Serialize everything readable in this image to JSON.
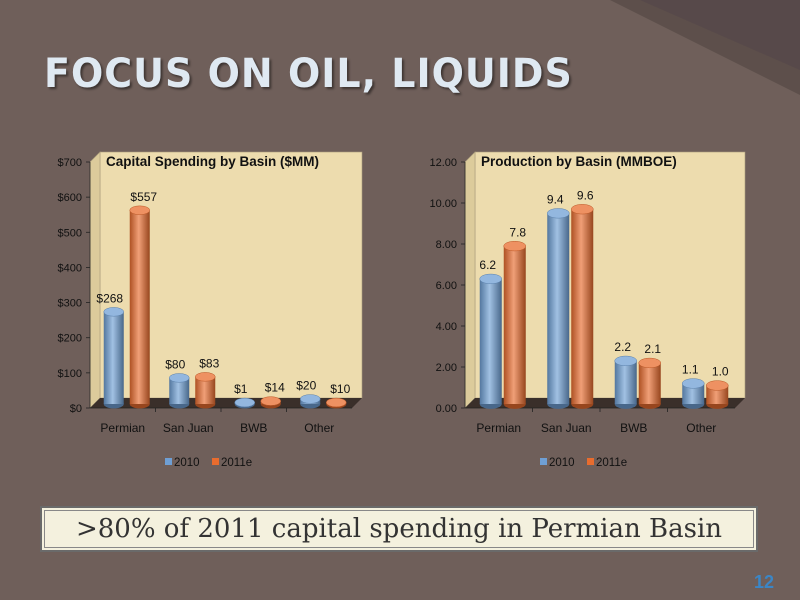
{
  "slide": {
    "title": "FOCUS ON OIL, LIQUIDS",
    "callout": ">80% of 2011 capital spending in Permian Basin",
    "page_number": "12",
    "colors": {
      "background": "#6f5f5a",
      "dark_wedge": "#5d4f4b",
      "title": "#dfe9f2",
      "plot_area": "#eddcae",
      "page_number": "#3b86c6"
    }
  },
  "chart_data": [
    {
      "type": "bar",
      "title": "Capital Spending by Basin ($MM)",
      "categories": [
        "Permian",
        "San Juan",
        "BWB",
        "Other"
      ],
      "series": [
        {
          "name": "2010",
          "values": [
            268,
            80,
            1,
            20
          ],
          "labels": [
            "$268",
            "$80",
            "$1",
            "$20"
          ],
          "color": "#6f9fd4"
        },
        {
          "name": "2011e",
          "values": [
            557,
            83,
            14,
            10
          ],
          "labels": [
            "$557",
            "$83",
            "$14",
            "$10"
          ],
          "color": "#e86c2e"
        }
      ],
      "ylim": [
        0,
        700
      ],
      "yticks": [
        0,
        100,
        200,
        300,
        400,
        500,
        600,
        700
      ],
      "yticklabels": [
        "$0",
        "$100",
        "$200",
        "$300",
        "$400",
        "$500",
        "$600",
        "$700"
      ],
      "legend": "bottom",
      "grid": false
    },
    {
      "type": "bar",
      "title": "Production by Basin (MMBOE)",
      "categories": [
        "Permian",
        "San Juan",
        "BWB",
        "Other"
      ],
      "series": [
        {
          "name": "2010",
          "values": [
            6.2,
            9.4,
            2.2,
            1.1
          ],
          "labels": [
            "6.2",
            "9.4",
            "2.2",
            "1.1"
          ],
          "color": "#6f9fd4"
        },
        {
          "name": "2011e",
          "values": [
            7.8,
            9.6,
            2.1,
            1.0
          ],
          "labels": [
            "7.8",
            "9.6",
            "2.1",
            "1.0"
          ],
          "color": "#e86c2e"
        }
      ],
      "ylim": [
        0,
        12
      ],
      "yticks": [
        0,
        2,
        4,
        6,
        8,
        10,
        12
      ],
      "yticklabels": [
        "0.00",
        "2.00",
        "4.00",
        "6.00",
        "8.00",
        "10.00",
        "12.00"
      ],
      "legend": "bottom",
      "grid": false
    }
  ]
}
